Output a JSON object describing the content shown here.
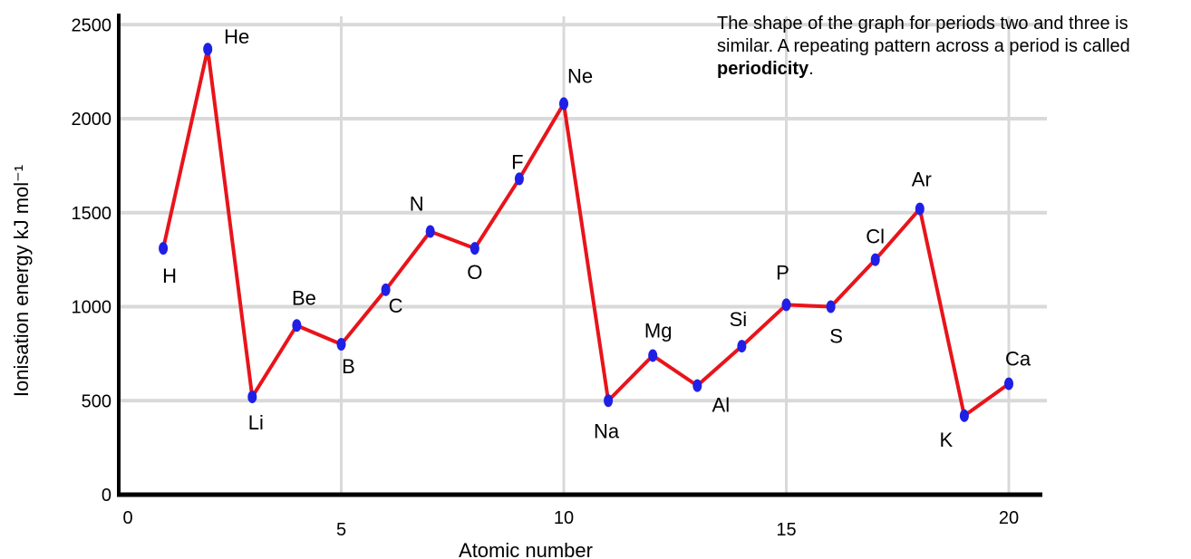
{
  "note": {
    "text_before": "The shape of the graph for periods two and three is similar. A repeating pattern across a period is called ",
    "bold": "periodicity",
    "text_after": "."
  },
  "colors": {
    "line": "#e8141b",
    "marker": "#1f1fe6",
    "grid": "#d9d9d9",
    "axis": "#000000"
  },
  "chart_data": {
    "type": "line",
    "title": "",
    "xlabel": "Atomic number",
    "ylabel": "Ionisation energy kJ mol⁻¹",
    "xlim": [
      0,
      21
    ],
    "ylim": [
      0,
      2500
    ],
    "xticks": [
      0,
      5,
      10,
      15,
      20
    ],
    "yticks": [
      0,
      500,
      1000,
      1500,
      2000,
      2500
    ],
    "grid": true,
    "points": [
      {
        "label": "H",
        "x": 1,
        "y": 1310
      },
      {
        "label": "He",
        "x": 2,
        "y": 2370
      },
      {
        "label": "Li",
        "x": 3,
        "y": 520
      },
      {
        "label": "Be",
        "x": 4,
        "y": 900
      },
      {
        "label": "B",
        "x": 5,
        "y": 800
      },
      {
        "label": "C",
        "x": 6,
        "y": 1090
      },
      {
        "label": "N",
        "x": 7,
        "y": 1400
      },
      {
        "label": "O",
        "x": 8,
        "y": 1310
      },
      {
        "label": "F",
        "x": 9,
        "y": 1680
      },
      {
        "label": "Ne",
        "x": 10,
        "y": 2080
      },
      {
        "label": "Na",
        "x": 11,
        "y": 500
      },
      {
        "label": "Mg",
        "x": 12,
        "y": 740
      },
      {
        "label": "Al",
        "x": 13,
        "y": 580
      },
      {
        "label": "Si",
        "x": 14,
        "y": 790
      },
      {
        "label": "P",
        "x": 15,
        "y": 1010
      },
      {
        "label": "S",
        "x": 16,
        "y": 1000
      },
      {
        "label": "Cl",
        "x": 17,
        "y": 1250
      },
      {
        "label": "Ar",
        "x": 18,
        "y": 1520
      },
      {
        "label": "K",
        "x": 19,
        "y": 420
      },
      {
        "label": "Ca",
        "x": 20,
        "y": 590
      }
    ]
  }
}
